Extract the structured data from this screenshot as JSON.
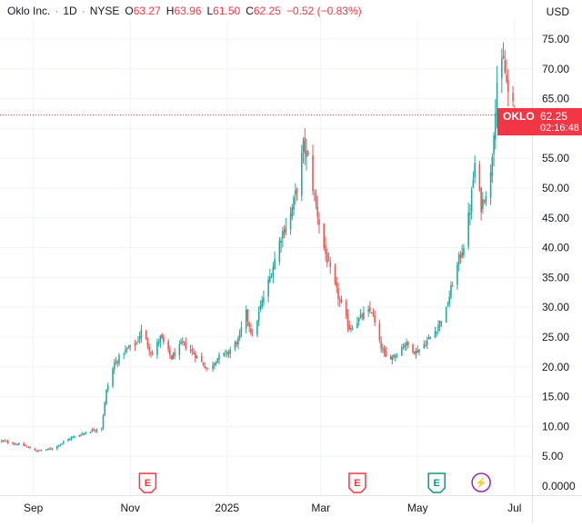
{
  "header": {
    "symbol": "Oklo Inc.",
    "interval": "1D",
    "exchange": "NYSE",
    "open_label": "O",
    "open": "63.27",
    "high_label": "H",
    "high": "63.96",
    "low_label": "L",
    "low": "61.50",
    "close_label": "C",
    "close": "62.25",
    "change": "−0.52 (−0.83%)"
  },
  "currency": "USD",
  "price_tag": {
    "ticker": "OKLO",
    "price": "62.25",
    "countdown": "02:16:48"
  },
  "colors": {
    "up": "#26a69a",
    "down": "#ef5350",
    "label_down": "#f23645",
    "grid": "#f0f3fa",
    "axis_text": "#131722"
  },
  "events": [
    {
      "date": "2024-11-12",
      "letter": "E",
      "kind": "earnings",
      "color": "#f23645"
    },
    {
      "date": "2025-03-24",
      "letter": "E",
      "kind": "earnings",
      "color": "#f23645"
    },
    {
      "date": "2025-05-13",
      "letter": "E",
      "kind": "earnings",
      "color": "#089981"
    },
    {
      "date": "2025-06-10",
      "letter": "⚡",
      "kind": "news",
      "color": "#9c27b0"
    }
  ],
  "chart_data": {
    "type": "candlestick",
    "y_ticks": [
      "75.00",
      "70.00",
      "65.00",
      "60.00",
      "55.00",
      "50.00",
      "45.00",
      "40.00",
      "35.00",
      "30.00",
      "25.00",
      "20.00",
      "15.00",
      "10.00",
      "5.00",
      "0.0000"
    ],
    "x_ticks": [
      "Sep",
      "Nov",
      "2025",
      "Mar",
      "May",
      "Jul"
    ],
    "x_tick_dates": [
      "2024-09-01",
      "2024-11-01",
      "2025-01-01",
      "2025-03-01",
      "2025-05-01",
      "2025-07-01"
    ],
    "ylim": [
      0,
      78
    ],
    "xlim": [
      "2024-08-11",
      "2025-07-12"
    ],
    "last_price": 62.25,
    "grid": true,
    "keypoints": [
      [
        "2024-08-12",
        7.6
      ],
      [
        "2024-08-26",
        6.8
      ],
      [
        "2024-09-03",
        5.9
      ],
      [
        "2024-09-13",
        6.3
      ],
      [
        "2024-09-24",
        8.0
      ],
      [
        "2024-10-07",
        9.3
      ],
      [
        "2024-10-14",
        9.8
      ],
      [
        "2024-10-17",
        16.0
      ],
      [
        "2024-10-22",
        20.5
      ],
      [
        "2024-10-28",
        22.5
      ],
      [
        "2024-11-05",
        24.0
      ],
      [
        "2024-11-08",
        26.0
      ],
      [
        "2024-11-15",
        22.0
      ],
      [
        "2024-11-20",
        25.0
      ],
      [
        "2024-11-27",
        21.5
      ],
      [
        "2024-12-04",
        24.0
      ],
      [
        "2024-12-12",
        22.0
      ],
      [
        "2024-12-20",
        19.5
      ],
      [
        "2024-12-26",
        21.5
      ],
      [
        "2025-01-02",
        22.5
      ],
      [
        "2025-01-08",
        24.5
      ],
      [
        "2025-01-13",
        29.0
      ],
      [
        "2025-01-17",
        25.0
      ],
      [
        "2025-01-22",
        30.0
      ],
      [
        "2025-01-28",
        35.0
      ],
      [
        "2025-02-04",
        42.0
      ],
      [
        "2025-02-10",
        45.5
      ],
      [
        "2025-02-14",
        50.0
      ],
      [
        "2025-02-18",
        57.0
      ],
      [
        "2025-02-21",
        55.0
      ],
      [
        "2025-02-26",
        47.0
      ],
      [
        "2025-03-03",
        40.0
      ],
      [
        "2025-03-07",
        36.0
      ],
      [
        "2025-03-13",
        31.0
      ],
      [
        "2025-03-19",
        26.5
      ],
      [
        "2025-03-27",
        28.5
      ],
      [
        "2025-04-02",
        29.5
      ],
      [
        "2025-04-07",
        24.0
      ],
      [
        "2025-04-11",
        21.5
      ],
      [
        "2025-04-17",
        22.0
      ],
      [
        "2025-04-23",
        24.0
      ],
      [
        "2025-04-30",
        22.5
      ],
      [
        "2025-05-06",
        24.0
      ],
      [
        "2025-05-12",
        26.0
      ],
      [
        "2025-05-19",
        29.5
      ],
      [
        "2025-05-22",
        33.0
      ],
      [
        "2025-05-27",
        38.0
      ],
      [
        "2025-05-30",
        40.5
      ],
      [
        "2025-06-03",
        46.5
      ],
      [
        "2025-06-06",
        54.0
      ],
      [
        "2025-06-10",
        47.0
      ],
      [
        "2025-06-16",
        52.0
      ],
      [
        "2025-06-18",
        60.0
      ],
      [
        "2025-06-20",
        68.0
      ],
      [
        "2025-06-24",
        71.0
      ],
      [
        "2025-06-27",
        66.0
      ],
      [
        "2025-06-30",
        63.5
      ],
      [
        "2025-07-01",
        62.25
      ]
    ]
  }
}
